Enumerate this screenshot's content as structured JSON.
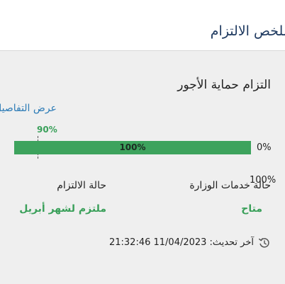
{
  "header": {
    "title": "ملخص الالتزام"
  },
  "card": {
    "title": "التزام حماية الأجور",
    "details_link": "عرض التفاصيل"
  },
  "progress": {
    "value_percent": 100,
    "value_label": "100%",
    "target_percent": 90,
    "target_label": "90%",
    "min_label": "0%",
    "max_label": "100%"
  },
  "stats": {
    "services": {
      "label": "حالة خدمات الوزارة",
      "value": "متاح"
    },
    "compliance": {
      "label": "حالة الالتزام",
      "value": "ملتزم لشهر أبريل"
    }
  },
  "updated": {
    "label": "آخر تحديث:",
    "timestamp": "21:32:46 11/04/2023",
    "icon": "refresh-icon"
  },
  "colors": {
    "accent_green": "#3da35d",
    "link_blue": "#2c7bb6",
    "title_navy": "#1f3a60",
    "track_gray": "#d5d5d5"
  }
}
